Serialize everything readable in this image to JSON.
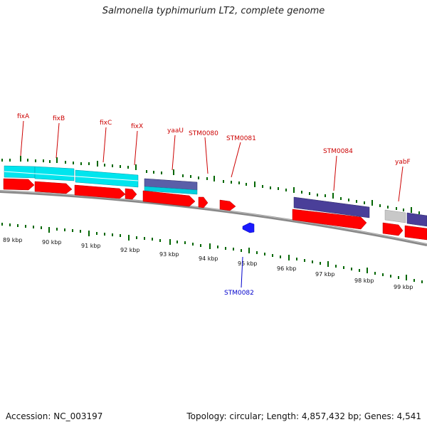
{
  "title": "Salmonella typhimurium LT2, complete genome",
  "footer": {
    "accession": "Accession: NC_003197",
    "topology": "Topology: circular; Length: 4,857,432 bp; Genes: 4,541"
  },
  "colors": {
    "gene_label": "#cc0000",
    "reverse_label": "#0000cc",
    "tick": "#006600",
    "cds": "#ff0000",
    "cyan_feature": "#00e5ee",
    "purple_feature": "#4a3f99",
    "grey_feature": "#c8c8c8",
    "backbone": "#888888"
  },
  "scale_labels": [
    "89 kbp",
    "90 kbp",
    "91 kbp",
    "92 kbp",
    "93 kbp",
    "94 kbp",
    "95 kbp",
    "96 kbp",
    "97 kbp",
    "98 kbp",
    "99 kbp"
  ],
  "forward_genes": [
    "fixA",
    "fixB",
    "fixC",
    "fixX",
    "yaaU",
    "STM0080",
    "STM0081",
    "STM0084",
    "yabF"
  ],
  "reverse_genes": [
    "STM0082"
  ]
}
